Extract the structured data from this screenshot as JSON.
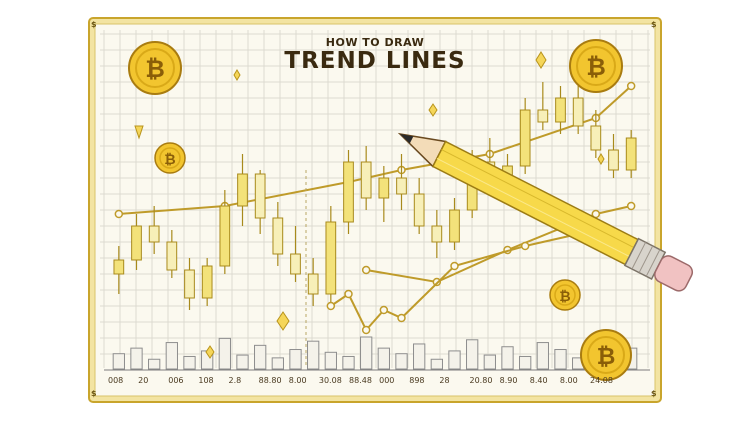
{
  "title_small": "HOW TO DRAW",
  "title_big": "TREND LINES",
  "coin_symbol": "₿",
  "corner_glyph": "$",
  "x_ticks": [
    "008",
    "20",
    "006",
    "108",
    "2.8",
    "88.80",
    "8.00",
    "30.08",
    "88.48",
    "000",
    "898",
    "28",
    "20.80",
    "8.90",
    "8.40",
    "8.00",
    "24.08"
  ],
  "icons": [
    "bitcoin-coin-icon",
    "pencil-icon",
    "eraser-icon",
    "diamond-sparkle-icon",
    "arrow-down-icon"
  ],
  "colors": {
    "background": "#ffffff",
    "paper": "#fbf9ef",
    "frame": "#e8c84e",
    "grid": "#dcdad0",
    "candle": "#f3e27a",
    "candle_stroke": "#a88a1c",
    "trendline": "#bf9b2a",
    "coin": "#f2c52f",
    "volume": "#8e8e8e"
  },
  "chart_data": {
    "type": "candlestick",
    "title": "TREND LINES",
    "subtitle": "HOW TO DRAW",
    "xlabel": "",
    "ylabel": "",
    "x_tick_labels": [
      "008",
      "20",
      "006",
      "108",
      "2.8",
      "88.80",
      "8.00",
      "30.08",
      "88.48",
      "000",
      "898",
      "28",
      "20.80",
      "8.90",
      "8.40",
      "8.00",
      "24.08"
    ],
    "candles": [
      {
        "o": 88,
        "h": 102,
        "l": 78,
        "c": 95
      },
      {
        "o": 95,
        "h": 118,
        "l": 90,
        "c": 112
      },
      {
        "o": 112,
        "h": 122,
        "l": 98,
        "c": 104
      },
      {
        "o": 104,
        "h": 110,
        "l": 86,
        "c": 90
      },
      {
        "o": 90,
        "h": 96,
        "l": 70,
        "c": 76
      },
      {
        "o": 76,
        "h": 96,
        "l": 72,
        "c": 92
      },
      {
        "o": 92,
        "h": 130,
        "l": 88,
        "c": 122
      },
      {
        "o": 122,
        "h": 148,
        "l": 112,
        "c": 138
      },
      {
        "o": 138,
        "h": 140,
        "l": 108,
        "c": 116
      },
      {
        "o": 116,
        "h": 124,
        "l": 92,
        "c": 98
      },
      {
        "o": 98,
        "h": 112,
        "l": 84,
        "c": 88
      },
      {
        "o": 88,
        "h": 96,
        "l": 72,
        "c": 78
      },
      {
        "o": 78,
        "h": 122,
        "l": 74,
        "c": 114
      },
      {
        "o": 114,
        "h": 150,
        "l": 108,
        "c": 144
      },
      {
        "o": 144,
        "h": 152,
        "l": 120,
        "c": 126
      },
      {
        "o": 126,
        "h": 142,
        "l": 114,
        "c": 136
      },
      {
        "o": 136,
        "h": 148,
        "l": 120,
        "c": 128
      },
      {
        "o": 128,
        "h": 136,
        "l": 108,
        "c": 112
      },
      {
        "o": 112,
        "h": 120,
        "l": 96,
        "c": 104
      },
      {
        "o": 104,
        "h": 126,
        "l": 100,
        "c": 120
      },
      {
        "o": 120,
        "h": 150,
        "l": 116,
        "c": 144
      },
      {
        "o": 144,
        "h": 156,
        "l": 128,
        "c": 132
      },
      {
        "o": 132,
        "h": 148,
        "l": 126,
        "c": 142
      },
      {
        "o": 142,
        "h": 176,
        "l": 138,
        "c": 170
      },
      {
        "o": 170,
        "h": 184,
        "l": 160,
        "c": 164
      },
      {
        "o": 164,
        "h": 182,
        "l": 158,
        "c": 176
      },
      {
        "o": 176,
        "h": 182,
        "l": 158,
        "c": 162
      },
      {
        "o": 162,
        "h": 170,
        "l": 146,
        "c": 150
      },
      {
        "o": 150,
        "h": 158,
        "l": 136,
        "c": 140
      },
      {
        "o": 140,
        "h": 160,
        "l": 136,
        "c": 156
      }
    ],
    "volume": [
      22,
      30,
      14,
      38,
      18,
      26,
      44,
      20,
      34,
      16,
      28,
      40,
      24,
      18,
      46,
      30,
      22,
      36,
      14,
      26,
      42,
      20,
      32,
      18,
      38,
      28,
      16,
      34,
      24,
      30
    ],
    "trendlines": [
      {
        "points": [
          [
            0,
            118
          ],
          [
            6,
            122
          ],
          [
            13,
            134
          ],
          [
            16,
            140
          ],
          [
            21,
            148
          ],
          [
            27,
            166
          ],
          [
            29,
            182
          ]
        ]
      },
      {
        "points": [
          [
            14,
            90
          ],
          [
            18,
            84
          ],
          [
            22,
            100
          ],
          [
            27,
            118
          ],
          [
            29,
            122
          ]
        ]
      },
      {
        "points": [
          [
            12,
            72
          ],
          [
            13,
            78
          ],
          [
            14,
            60
          ],
          [
            15,
            70
          ],
          [
            16,
            66
          ],
          [
            19,
            92
          ],
          [
            23,
            102
          ],
          [
            26,
            108
          ]
        ]
      }
    ],
    "grid": true,
    "legend": "none"
  }
}
